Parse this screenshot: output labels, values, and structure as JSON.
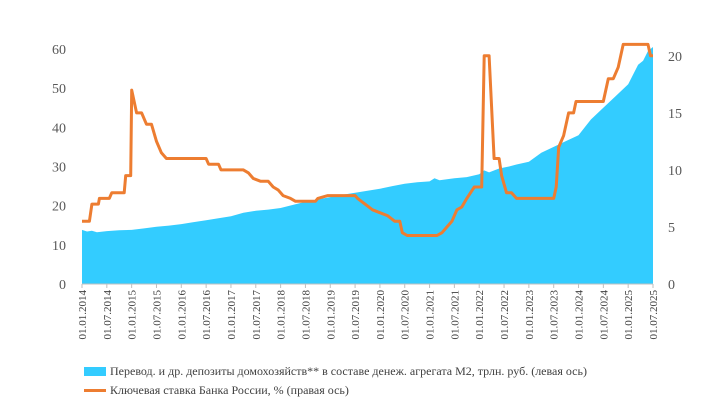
{
  "chart_data": {
    "type": "area",
    "title": "",
    "left_axis": {
      "ticks": [
        "0",
        "10",
        "20",
        "30",
        "40",
        "50",
        "60"
      ],
      "min": 0,
      "max": 60
    },
    "right_axis": {
      "ticks": [
        "0",
        "5",
        "10",
        "15",
        "20"
      ],
      "min": 0,
      "max": 20.6
    },
    "x_ticks": [
      "01.01.2014",
      "01.07.2014",
      "01.01.2015",
      "01.07.2015",
      "01.01.2016",
      "01.07.2016",
      "01.01.2017",
      "01.07.2017",
      "01.01.2018",
      "01.07.2018",
      "01.01.2019",
      "01.07.2019",
      "01.01.2020",
      "01.07.2020",
      "01.01.2021",
      "01.07.2021",
      "01.01.2022",
      "01.07.2022",
      "01.01.2023",
      "01.07.2023",
      "01.01.2024",
      "01.07.2024",
      "01.01.2025",
      "01.07.2025"
    ],
    "x_range": [
      2014.0,
      2025.5
    ],
    "grid": false,
    "legend_position": "bottom",
    "series": [
      {
        "name": "Перевод. и др. депозиты домохозяйств** в составе денеж. агрегата М2, трлн. руб. (левая ось)",
        "axis": "left",
        "color": "#33CCFF",
        "kind": "area",
        "points": [
          [
            2014.0,
            13.8
          ],
          [
            2014.1,
            13.4
          ],
          [
            2014.2,
            13.6
          ],
          [
            2014.3,
            13.2
          ],
          [
            2014.5,
            13.5
          ],
          [
            2014.75,
            13.7
          ],
          [
            2015.0,
            13.8
          ],
          [
            2015.25,
            14.2
          ],
          [
            2015.5,
            14.6
          ],
          [
            2015.75,
            14.9
          ],
          [
            2016.0,
            15.3
          ],
          [
            2016.25,
            15.8
          ],
          [
            2016.5,
            16.3
          ],
          [
            2016.75,
            16.8
          ],
          [
            2017.0,
            17.3
          ],
          [
            2017.25,
            18.2
          ],
          [
            2017.5,
            18.7
          ],
          [
            2017.75,
            19.0
          ],
          [
            2018.0,
            19.4
          ],
          [
            2018.25,
            20.2
          ],
          [
            2018.5,
            21.0
          ],
          [
            2018.75,
            21.6
          ],
          [
            2019.0,
            22.2
          ],
          [
            2019.25,
            22.8
          ],
          [
            2019.5,
            23.3
          ],
          [
            2019.75,
            23.8
          ],
          [
            2020.0,
            24.3
          ],
          [
            2020.25,
            25.0
          ],
          [
            2020.5,
            25.6
          ],
          [
            2020.75,
            26.0
          ],
          [
            2021.0,
            26.2
          ],
          [
            2021.1,
            27.0
          ],
          [
            2021.2,
            26.5
          ],
          [
            2021.5,
            27.0
          ],
          [
            2021.75,
            27.3
          ],
          [
            2022.0,
            28.0
          ],
          [
            2022.1,
            29.0
          ],
          [
            2022.2,
            28.5
          ],
          [
            2022.4,
            29.5
          ],
          [
            2022.6,
            30.0
          ],
          [
            2022.75,
            30.5
          ],
          [
            2023.0,
            31.2
          ],
          [
            2023.25,
            33.5
          ],
          [
            2023.5,
            35.0
          ],
          [
            2023.75,
            36.5
          ],
          [
            2024.0,
            38.0
          ],
          [
            2024.25,
            42.0
          ],
          [
            2024.5,
            45.0
          ],
          [
            2024.75,
            48.0
          ],
          [
            2025.0,
            51.0
          ],
          [
            2025.2,
            56.0
          ],
          [
            2025.3,
            57.0
          ],
          [
            2025.4,
            59.5
          ],
          [
            2025.5,
            60.5
          ]
        ]
      },
      {
        "name": "Ключевая ставка Банка России, % (правая ось)",
        "axis": "right",
        "color": "#ED7D31",
        "kind": "line",
        "points": [
          [
            2014.0,
            5.5
          ],
          [
            2014.15,
            5.5
          ],
          [
            2014.2,
            7.0
          ],
          [
            2014.33,
            7.0
          ],
          [
            2014.35,
            7.5
          ],
          [
            2014.55,
            7.5
          ],
          [
            2014.6,
            8.0
          ],
          [
            2014.85,
            8.0
          ],
          [
            2014.88,
            9.5
          ],
          [
            2014.98,
            9.5
          ],
          [
            2015.0,
            17.0
          ],
          [
            2015.1,
            15.0
          ],
          [
            2015.2,
            15.0
          ],
          [
            2015.3,
            14.0
          ],
          [
            2015.4,
            14.0
          ],
          [
            2015.5,
            12.5
          ],
          [
            2015.6,
            11.5
          ],
          [
            2015.7,
            11.0
          ],
          [
            2016.5,
            11.0
          ],
          [
            2016.55,
            10.5
          ],
          [
            2016.75,
            10.5
          ],
          [
            2016.8,
            10.0
          ],
          [
            2017.25,
            10.0
          ],
          [
            2017.35,
            9.75
          ],
          [
            2017.45,
            9.25
          ],
          [
            2017.6,
            9.0
          ],
          [
            2017.75,
            9.0
          ],
          [
            2017.85,
            8.5
          ],
          [
            2017.95,
            8.25
          ],
          [
            2018.05,
            7.75
          ],
          [
            2018.2,
            7.5
          ],
          [
            2018.3,
            7.25
          ],
          [
            2018.7,
            7.25
          ],
          [
            2018.75,
            7.5
          ],
          [
            2018.95,
            7.75
          ],
          [
            2019.5,
            7.75
          ],
          [
            2019.55,
            7.5
          ],
          [
            2019.7,
            7.0
          ],
          [
            2019.85,
            6.5
          ],
          [
            2020.0,
            6.25
          ],
          [
            2020.15,
            6.0
          ],
          [
            2020.3,
            5.5
          ],
          [
            2020.4,
            5.5
          ],
          [
            2020.45,
            4.5
          ],
          [
            2020.55,
            4.25
          ],
          [
            2021.15,
            4.25
          ],
          [
            2021.25,
            4.5
          ],
          [
            2021.35,
            5.0
          ],
          [
            2021.45,
            5.5
          ],
          [
            2021.55,
            6.5
          ],
          [
            2021.65,
            6.75
          ],
          [
            2021.75,
            7.5
          ],
          [
            2021.9,
            8.5
          ],
          [
            2022.0,
            8.5
          ],
          [
            2022.05,
            8.5
          ],
          [
            2022.1,
            20.0
          ],
          [
            2022.2,
            20.0
          ],
          [
            2022.3,
            11.0
          ],
          [
            2022.4,
            11.0
          ],
          [
            2022.45,
            9.5
          ],
          [
            2022.55,
            8.0
          ],
          [
            2022.65,
            8.0
          ],
          [
            2022.75,
            7.5
          ],
          [
            2023.45,
            7.5
          ],
          [
            2023.5,
            7.5
          ],
          [
            2023.55,
            8.5
          ],
          [
            2023.6,
            12.0
          ],
          [
            2023.7,
            13.0
          ],
          [
            2023.8,
            15.0
          ],
          [
            2023.9,
            15.0
          ],
          [
            2023.95,
            16.0
          ],
          [
            2024.45,
            16.0
          ],
          [
            2024.5,
            16.0
          ],
          [
            2024.6,
            18.0
          ],
          [
            2024.7,
            18.0
          ],
          [
            2024.8,
            19.0
          ],
          [
            2024.9,
            21.0
          ],
          [
            2025.4,
            21.0
          ],
          [
            2025.45,
            20.0
          ],
          [
            2025.5,
            20.0
          ]
        ]
      }
    ]
  }
}
